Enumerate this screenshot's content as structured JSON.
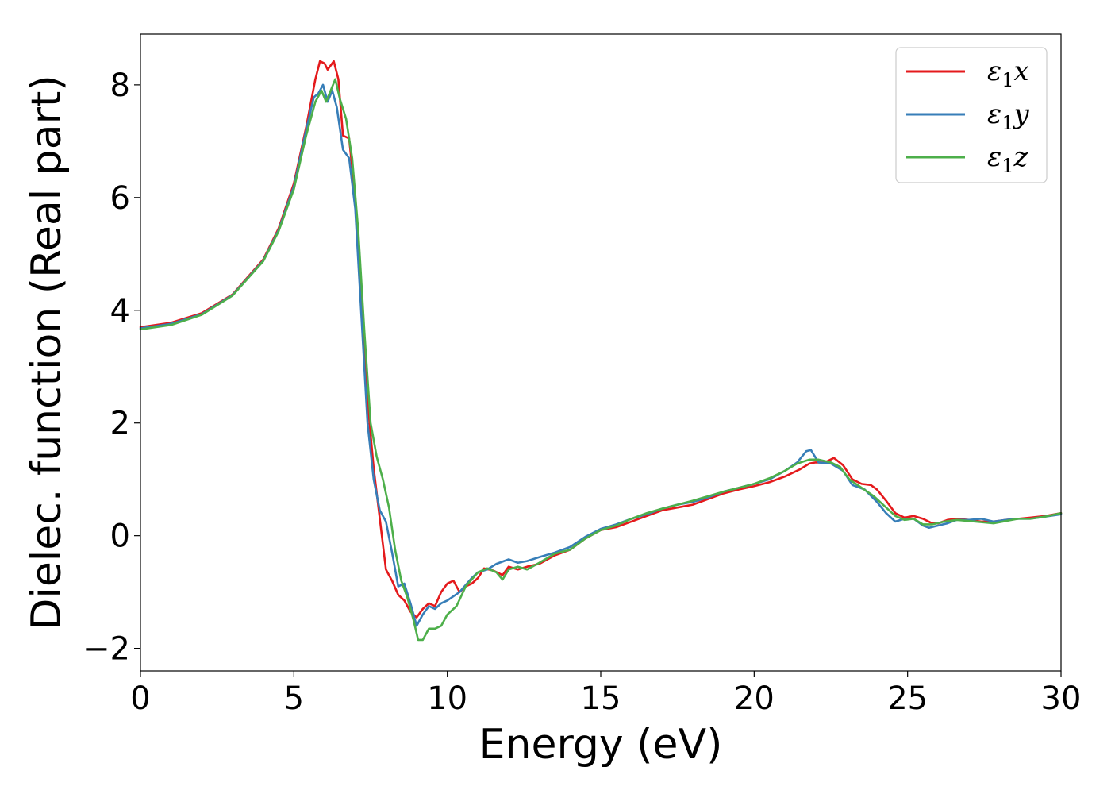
{
  "chart_data": {
    "type": "line",
    "xlabel": "Energy (eV)",
    "ylabel": "Dielec. function (Real part)",
    "xlim": [
      0,
      30
    ],
    "ylim": [
      -2.4,
      8.9
    ],
    "xticks": [
      0,
      5,
      10,
      15,
      20,
      25,
      30
    ],
    "xtick_labels": [
      "0",
      "5",
      "10",
      "15",
      "20",
      "25",
      "30"
    ],
    "yticks": [
      -2,
      0,
      2,
      4,
      6,
      8
    ],
    "ytick_labels": [
      "−2",
      "0",
      "2",
      "4",
      "6",
      "8"
    ],
    "grid": false,
    "legend_position": "top-right",
    "series": [
      {
        "name": "ε1x",
        "legend_base": "ε",
        "legend_sub": "1",
        "legend_suffix": "x",
        "color": "#e41a1c",
        "points": [
          [
            0,
            3.7
          ],
          [
            1,
            3.78
          ],
          [
            2,
            3.95
          ],
          [
            3,
            4.28
          ],
          [
            4,
            4.9
          ],
          [
            4.5,
            5.45
          ],
          [
            5,
            6.25
          ],
          [
            5.4,
            7.25
          ],
          [
            5.7,
            8.1
          ],
          [
            5.85,
            8.42
          ],
          [
            6.0,
            8.38
          ],
          [
            6.1,
            8.27
          ],
          [
            6.3,
            8.42
          ],
          [
            6.45,
            8.1
          ],
          [
            6.6,
            7.1
          ],
          [
            6.8,
            7.05
          ],
          [
            7.0,
            6.0
          ],
          [
            7.2,
            4.2
          ],
          [
            7.4,
            2.4
          ],
          [
            7.6,
            1.2
          ],
          [
            7.8,
            0.3
          ],
          [
            8.0,
            -0.6
          ],
          [
            8.2,
            -0.8
          ],
          [
            8.4,
            -1.05
          ],
          [
            8.6,
            -1.15
          ],
          [
            8.8,
            -1.35
          ],
          [
            9.0,
            -1.45
          ],
          [
            9.2,
            -1.3
          ],
          [
            9.4,
            -1.2
          ],
          [
            9.6,
            -1.25
          ],
          [
            9.8,
            -1.0
          ],
          [
            10.0,
            -0.85
          ],
          [
            10.2,
            -0.8
          ],
          [
            10.4,
            -1.0
          ],
          [
            10.6,
            -0.9
          ],
          [
            10.8,
            -0.85
          ],
          [
            11.0,
            -0.75
          ],
          [
            11.2,
            -0.58
          ],
          [
            11.5,
            -0.62
          ],
          [
            11.8,
            -0.7
          ],
          [
            12.0,
            -0.55
          ],
          [
            12.3,
            -0.6
          ],
          [
            12.6,
            -0.55
          ],
          [
            13.0,
            -0.5
          ],
          [
            13.5,
            -0.35
          ],
          [
            14.0,
            -0.25
          ],
          [
            14.5,
            -0.05
          ],
          [
            15.0,
            0.1
          ],
          [
            15.5,
            0.15
          ],
          [
            16.0,
            0.25
          ],
          [
            16.5,
            0.35
          ],
          [
            17.0,
            0.45
          ],
          [
            17.5,
            0.5
          ],
          [
            18.0,
            0.55
          ],
          [
            18.5,
            0.65
          ],
          [
            19.0,
            0.75
          ],
          [
            19.5,
            0.82
          ],
          [
            20.0,
            0.88
          ],
          [
            20.5,
            0.95
          ],
          [
            21.0,
            1.05
          ],
          [
            21.5,
            1.18
          ],
          [
            21.8,
            1.28
          ],
          [
            22.0,
            1.3
          ],
          [
            22.3,
            1.3
          ],
          [
            22.6,
            1.38
          ],
          [
            22.9,
            1.25
          ],
          [
            23.2,
            1.0
          ],
          [
            23.5,
            0.92
          ],
          [
            23.8,
            0.9
          ],
          [
            24.0,
            0.82
          ],
          [
            24.3,
            0.62
          ],
          [
            24.6,
            0.4
          ],
          [
            24.9,
            0.32
          ],
          [
            25.2,
            0.35
          ],
          [
            25.5,
            0.3
          ],
          [
            25.8,
            0.22
          ],
          [
            26.0,
            0.22
          ],
          [
            26.3,
            0.28
          ],
          [
            26.6,
            0.3
          ],
          [
            27.0,
            0.28
          ],
          [
            27.4,
            0.25
          ],
          [
            27.8,
            0.25
          ],
          [
            28.2,
            0.28
          ],
          [
            28.6,
            0.3
          ],
          [
            29.0,
            0.32
          ],
          [
            29.5,
            0.35
          ],
          [
            30.0,
            0.4
          ]
        ]
      },
      {
        "name": "ε1y",
        "legend_base": "ε",
        "legend_sub": "1",
        "legend_suffix": "y",
        "color": "#377eb8",
        "points": [
          [
            0,
            3.68
          ],
          [
            1,
            3.76
          ],
          [
            2,
            3.93
          ],
          [
            3,
            4.27
          ],
          [
            4,
            4.88
          ],
          [
            4.5,
            5.42
          ],
          [
            5,
            6.2
          ],
          [
            5.4,
            7.2
          ],
          [
            5.65,
            7.78
          ],
          [
            5.8,
            7.85
          ],
          [
            5.95,
            8.0
          ],
          [
            6.1,
            7.7
          ],
          [
            6.25,
            7.9
          ],
          [
            6.4,
            7.6
          ],
          [
            6.6,
            6.85
          ],
          [
            6.8,
            6.7
          ],
          [
            7.0,
            5.8
          ],
          [
            7.2,
            3.9
          ],
          [
            7.4,
            2.0
          ],
          [
            7.6,
            1.0
          ],
          [
            7.8,
            0.45
          ],
          [
            8.0,
            0.25
          ],
          [
            8.2,
            -0.3
          ],
          [
            8.4,
            -0.9
          ],
          [
            8.6,
            -0.85
          ],
          [
            8.8,
            -1.2
          ],
          [
            9.0,
            -1.6
          ],
          [
            9.2,
            -1.4
          ],
          [
            9.4,
            -1.25
          ],
          [
            9.6,
            -1.3
          ],
          [
            9.8,
            -1.2
          ],
          [
            10.0,
            -1.15
          ],
          [
            10.4,
            -1.0
          ],
          [
            10.8,
            -0.75
          ],
          [
            11.0,
            -0.65
          ],
          [
            11.3,
            -0.6
          ],
          [
            11.6,
            -0.5
          ],
          [
            12.0,
            -0.42
          ],
          [
            12.3,
            -0.48
          ],
          [
            12.6,
            -0.45
          ],
          [
            13.0,
            -0.38
          ],
          [
            13.5,
            -0.3
          ],
          [
            14.0,
            -0.2
          ],
          [
            14.5,
            -0.02
          ],
          [
            15.0,
            0.12
          ],
          [
            15.5,
            0.2
          ],
          [
            16.0,
            0.3
          ],
          [
            16.5,
            0.38
          ],
          [
            17.0,
            0.48
          ],
          [
            17.5,
            0.55
          ],
          [
            18.0,
            0.6
          ],
          [
            18.5,
            0.68
          ],
          [
            19.0,
            0.78
          ],
          [
            19.5,
            0.85
          ],
          [
            20.0,
            0.92
          ],
          [
            20.5,
            1.0
          ],
          [
            21.0,
            1.15
          ],
          [
            21.4,
            1.3
          ],
          [
            21.7,
            1.5
          ],
          [
            21.85,
            1.52
          ],
          [
            22.1,
            1.3
          ],
          [
            22.5,
            1.28
          ],
          [
            22.9,
            1.15
          ],
          [
            23.2,
            0.9
          ],
          [
            23.6,
            0.82
          ],
          [
            24.0,
            0.6
          ],
          [
            24.3,
            0.4
          ],
          [
            24.6,
            0.25
          ],
          [
            24.9,
            0.3
          ],
          [
            25.2,
            0.3
          ],
          [
            25.5,
            0.18
          ],
          [
            25.7,
            0.14
          ],
          [
            26.0,
            0.18
          ],
          [
            26.3,
            0.22
          ],
          [
            26.6,
            0.28
          ],
          [
            27.0,
            0.28
          ],
          [
            27.4,
            0.3
          ],
          [
            27.8,
            0.25
          ],
          [
            28.2,
            0.28
          ],
          [
            28.6,
            0.3
          ],
          [
            29.0,
            0.3
          ],
          [
            29.5,
            0.34
          ],
          [
            30.0,
            0.38
          ]
        ]
      },
      {
        "name": "ε1z",
        "legend_base": "ε",
        "legend_sub": "1",
        "legend_suffix": "z",
        "color": "#4daf4a",
        "points": [
          [
            0,
            3.66
          ],
          [
            1,
            3.74
          ],
          [
            2,
            3.92
          ],
          [
            3,
            4.26
          ],
          [
            4,
            4.87
          ],
          [
            4.5,
            5.4
          ],
          [
            5,
            6.15
          ],
          [
            5.4,
            7.1
          ],
          [
            5.7,
            7.7
          ],
          [
            5.9,
            7.9
          ],
          [
            6.05,
            7.7
          ],
          [
            6.2,
            7.9
          ],
          [
            6.35,
            8.1
          ],
          [
            6.5,
            7.75
          ],
          [
            6.7,
            7.4
          ],
          [
            6.9,
            6.7
          ],
          [
            7.1,
            5.4
          ],
          [
            7.3,
            3.6
          ],
          [
            7.5,
            2.0
          ],
          [
            7.7,
            1.4
          ],
          [
            7.9,
            1.0
          ],
          [
            8.1,
            0.5
          ],
          [
            8.3,
            -0.25
          ],
          [
            8.5,
            -0.8
          ],
          [
            8.7,
            -1.1
          ],
          [
            8.9,
            -1.5
          ],
          [
            9.05,
            -1.85
          ],
          [
            9.2,
            -1.85
          ],
          [
            9.4,
            -1.65
          ],
          [
            9.6,
            -1.65
          ],
          [
            9.8,
            -1.6
          ],
          [
            10.0,
            -1.4
          ],
          [
            10.3,
            -1.25
          ],
          [
            10.6,
            -0.9
          ],
          [
            11.0,
            -0.65
          ],
          [
            11.3,
            -0.58
          ],
          [
            11.6,
            -0.65
          ],
          [
            11.8,
            -0.78
          ],
          [
            12.0,
            -0.6
          ],
          [
            12.3,
            -0.55
          ],
          [
            12.6,
            -0.6
          ],
          [
            13.0,
            -0.48
          ],
          [
            13.5,
            -0.32
          ],
          [
            14.0,
            -0.25
          ],
          [
            14.5,
            -0.05
          ],
          [
            15.0,
            0.1
          ],
          [
            15.5,
            0.18
          ],
          [
            16.0,
            0.3
          ],
          [
            16.5,
            0.4
          ],
          [
            17.0,
            0.48
          ],
          [
            17.5,
            0.55
          ],
          [
            18.0,
            0.62
          ],
          [
            18.5,
            0.7
          ],
          [
            19.0,
            0.78
          ],
          [
            19.5,
            0.85
          ],
          [
            20.0,
            0.92
          ],
          [
            20.5,
            1.02
          ],
          [
            21.0,
            1.15
          ],
          [
            21.4,
            1.28
          ],
          [
            21.8,
            1.35
          ],
          [
            22.1,
            1.35
          ],
          [
            22.5,
            1.3
          ],
          [
            22.8,
            1.22
          ],
          [
            23.1,
            1.0
          ],
          [
            23.5,
            0.85
          ],
          [
            23.9,
            0.7
          ],
          [
            24.3,
            0.5
          ],
          [
            24.6,
            0.35
          ],
          [
            24.9,
            0.28
          ],
          [
            25.2,
            0.3
          ],
          [
            25.5,
            0.2
          ],
          [
            25.8,
            0.2
          ],
          [
            26.2,
            0.25
          ],
          [
            26.6,
            0.28
          ],
          [
            27.0,
            0.26
          ],
          [
            27.4,
            0.24
          ],
          [
            27.8,
            0.22
          ],
          [
            28.2,
            0.26
          ],
          [
            28.6,
            0.3
          ],
          [
            29.0,
            0.3
          ],
          [
            29.5,
            0.34
          ],
          [
            30.0,
            0.4
          ]
        ]
      }
    ]
  }
}
